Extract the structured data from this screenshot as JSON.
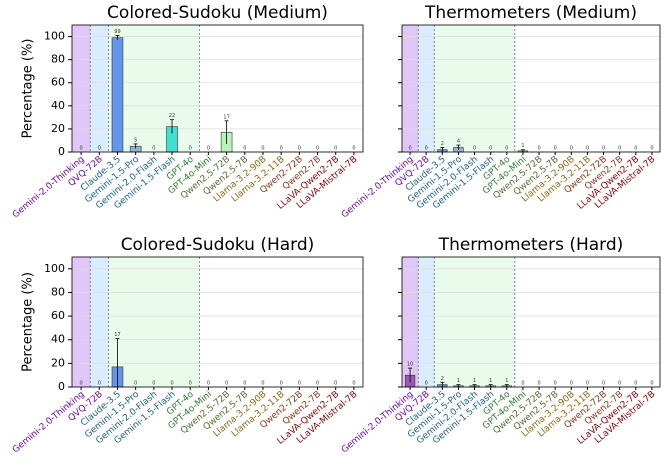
{
  "chart_data": [
    {
      "type": "bar",
      "title": "Colored-Sudoku (Medium)",
      "ylabel": "Percentage (%)",
      "categories": [
        "Gemini-2.0-Thinking",
        "QVQ-72B",
        "Claude-3.5",
        "Gemini-1.5-Pro",
        "Gemini-2.0-Flash",
        "Gemini-1.5-Flash",
        "GPT-4o",
        "GPT-4o-Mini",
        "Qwen2.5-72B",
        "Qwen2.5-7B",
        "Llama-3.2-90B",
        "Llama-3.2-11B",
        "Qwen2-72B",
        "Qwen2-7B",
        "LLaVA-Qwen2-7B",
        "LLaVA-Mistral-7B"
      ],
      "values": [
        0,
        0,
        99,
        5,
        0,
        22,
        0,
        0,
        17,
        0,
        0,
        0,
        0,
        0,
        0,
        0
      ],
      "errors": [
        0,
        0,
        2,
        2,
        0,
        6,
        0,
        0,
        10,
        0,
        0,
        0,
        0,
        0,
        0,
        0
      ],
      "bar_colors": [
        "#9b59b6",
        "#9b59b6",
        "#6495ed",
        "#8fb3d9",
        "#8fb3d9",
        "#40e0d0",
        "#90ee90",
        "#90ee90",
        "#b5f5b5",
        "#b5f5b5",
        "#c8b88a",
        "#c8b88a",
        "#d98c6a",
        "#d98c6a",
        "#cd5c5c",
        "#cd5c5c"
      ],
      "label_colors": [
        "#6a0dad",
        "#6a0dad",
        "#1f5f8b",
        "#1f5f8b",
        "#1f5f8b",
        "#1f5f8b",
        "#2e7d32",
        "#2e7d32",
        "#556b2f",
        "#556b2f",
        "#8b6914",
        "#8b6914",
        "#8b3a1a",
        "#8b3a1a",
        "#8b0000",
        "#8b0000"
      ],
      "ylim": [
        0,
        110
      ],
      "yticks": [
        0,
        20,
        40,
        60,
        80,
        100
      ],
      "grid": true
    },
    {
      "type": "bar",
      "title": "Thermometers (Medium)",
      "categories": [
        "Gemini-2.0-Thinking",
        "QVQ-72B",
        "Claude-3.5",
        "Gemini-1.5-Pro",
        "Gemini-2.0-Flash",
        "Gemini-1.5-Flash",
        "GPT-4o",
        "GPT-4o-Mini",
        "Qwen2.5-72B",
        "Qwen2.5-7B",
        "Llama-3.2-90B",
        "Llama-3.2-11B",
        "Qwen2-72B",
        "Qwen2-7B",
        "LLaVA-Qwen2-7B",
        "LLaVA-Mistral-7B"
      ],
      "values": [
        0,
        0,
        2,
        4,
        0,
        0,
        0,
        1,
        0,
        0,
        0,
        0,
        0,
        0,
        0,
        0
      ],
      "errors": [
        0,
        0,
        2,
        2,
        0,
        0,
        0,
        1,
        0,
        0,
        0,
        0,
        0,
        0,
        0,
        0
      ],
      "bar_colors": [
        "#9b59b6",
        "#9b59b6",
        "#6495ed",
        "#8fb3d9",
        "#8fb3d9",
        "#40e0d0",
        "#90ee90",
        "#90ee90",
        "#b5f5b5",
        "#b5f5b5",
        "#c8b88a",
        "#c8b88a",
        "#d98c6a",
        "#d98c6a",
        "#cd5c5c",
        "#cd5c5c"
      ],
      "label_colors": [
        "#6a0dad",
        "#6a0dad",
        "#1f5f8b",
        "#1f5f8b",
        "#1f5f8b",
        "#1f5f8b",
        "#2e7d32",
        "#2e7d32",
        "#556b2f",
        "#556b2f",
        "#8b6914",
        "#8b6914",
        "#8b3a1a",
        "#8b3a1a",
        "#8b0000",
        "#8b0000"
      ],
      "ylim": [
        0,
        110
      ],
      "yticks": [
        0,
        20,
        40,
        60,
        80,
        100
      ],
      "grid": true
    },
    {
      "type": "bar",
      "title": "Colored-Sudoku (Hard)",
      "ylabel": "Percentage (%)",
      "categories": [
        "Gemini-2.0-Thinking",
        "QVQ-72B",
        "Claude-3.5",
        "Gemini-1.5-Pro",
        "Gemini-2.0-Flash",
        "Gemini-1.5-Flash",
        "GPT-4o",
        "GPT-4o-Mini",
        "Qwen2.5-72B",
        "Qwen2.5-7B",
        "Llama-3.2-90B",
        "Llama-3.2-11B",
        "Qwen2-72B",
        "Qwen2-7B",
        "LLaVA-Qwen2-7B",
        "LLaVA-Mistral-7B"
      ],
      "values": [
        0,
        0,
        17,
        0,
        0,
        0,
        0,
        0,
        0,
        0,
        0,
        0,
        0,
        0,
        0,
        0
      ],
      "errors": [
        0,
        0,
        24,
        0,
        0,
        0,
        0,
        0,
        0,
        0,
        0,
        0,
        0,
        0,
        0,
        0
      ],
      "bar_colors": [
        "#9b59b6",
        "#9b59b6",
        "#6495ed",
        "#8fb3d9",
        "#8fb3d9",
        "#40e0d0",
        "#90ee90",
        "#90ee90",
        "#b5f5b5",
        "#b5f5b5",
        "#c8b88a",
        "#c8b88a",
        "#d98c6a",
        "#d98c6a",
        "#cd5c5c",
        "#cd5c5c"
      ],
      "label_colors": [
        "#6a0dad",
        "#6a0dad",
        "#1f5f8b",
        "#1f5f8b",
        "#1f5f8b",
        "#1f5f8b",
        "#2e7d32",
        "#2e7d32",
        "#556b2f",
        "#556b2f",
        "#8b6914",
        "#8b6914",
        "#8b3a1a",
        "#8b3a1a",
        "#8b0000",
        "#8b0000"
      ],
      "ylim": [
        0,
        110
      ],
      "yticks": [
        0,
        20,
        40,
        60,
        80,
        100
      ],
      "grid": true
    },
    {
      "type": "bar",
      "title": "Thermometers (Hard)",
      "categories": [
        "Gemini-2.0-Thinking",
        "QVQ-72B",
        "Claude-3.5",
        "Gemini-1.5-Pro",
        "Gemini-2.0-Flash",
        "Gemini-1.5-Flash",
        "GPT-4o",
        "GPT-4o-Mini",
        "Qwen2.5-72B",
        "Qwen2.5-7B",
        "Llama-3.2-90B",
        "Llama-3.2-11B",
        "Qwen2-72B",
        "Qwen2-7B",
        "LLaVA-Qwen2-7B",
        "LLaVA-Mistral-7B"
      ],
      "values": [
        10,
        0,
        2,
        1,
        1,
        1,
        1,
        0,
        0,
        0,
        0,
        0,
        0,
        0,
        0,
        0
      ],
      "errors": [
        6,
        0,
        2,
        1,
        1,
        1,
        1,
        0,
        0,
        0,
        0,
        0,
        0,
        0,
        0,
        0
      ],
      "bar_colors": [
        "#9b59b6",
        "#9b59b6",
        "#6495ed",
        "#8fb3d9",
        "#8fb3d9",
        "#40e0d0",
        "#90ee90",
        "#90ee90",
        "#b5f5b5",
        "#b5f5b5",
        "#c8b88a",
        "#c8b88a",
        "#d98c6a",
        "#d98c6a",
        "#cd5c5c",
        "#cd5c5c"
      ],
      "label_colors": [
        "#6a0dad",
        "#6a0dad",
        "#1f5f8b",
        "#1f5f8b",
        "#1f5f8b",
        "#1f5f8b",
        "#2e7d32",
        "#2e7d32",
        "#556b2f",
        "#556b2f",
        "#8b6914",
        "#8b6914",
        "#8b3a1a",
        "#8b3a1a",
        "#8b0000",
        "#8b0000"
      ],
      "ylim": [
        0,
        110
      ],
      "yticks": [
        0,
        20,
        40,
        60,
        80,
        100
      ],
      "grid": true
    }
  ]
}
